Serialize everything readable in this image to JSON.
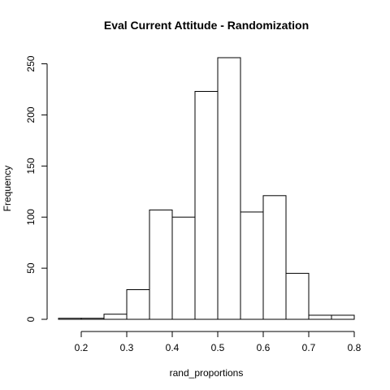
{
  "chart_data": {
    "type": "bar",
    "title": "Eval Current Attitude - Randomization",
    "xlabel": "rand_proportions",
    "ylabel": "Frequency",
    "bin_edges": [
      0.15,
      0.2,
      0.25,
      0.3,
      0.35,
      0.4,
      0.45,
      0.5,
      0.55,
      0.6,
      0.65,
      0.7,
      0.75,
      0.8
    ],
    "values": [
      1,
      1,
      5,
      29,
      107,
      100,
      223,
      256,
      105,
      121,
      45,
      4,
      4
    ],
    "xlim": [
      0.15,
      0.8
    ],
    "ylim": [
      0,
      256
    ],
    "x_ticks": [
      0.2,
      0.3,
      0.4,
      0.5,
      0.6,
      0.7,
      0.8
    ],
    "x_tick_labels": [
      "0.2",
      "0.3",
      "0.4",
      "0.5",
      "0.6",
      "0.7",
      "0.8"
    ],
    "y_ticks": [
      0,
      50,
      100,
      150,
      200,
      250
    ],
    "y_tick_labels": [
      "0",
      "50",
      "100",
      "150",
      "200",
      "250"
    ],
    "grid": false,
    "bar_fill": "#ffffff",
    "bar_stroke": "#000000"
  }
}
